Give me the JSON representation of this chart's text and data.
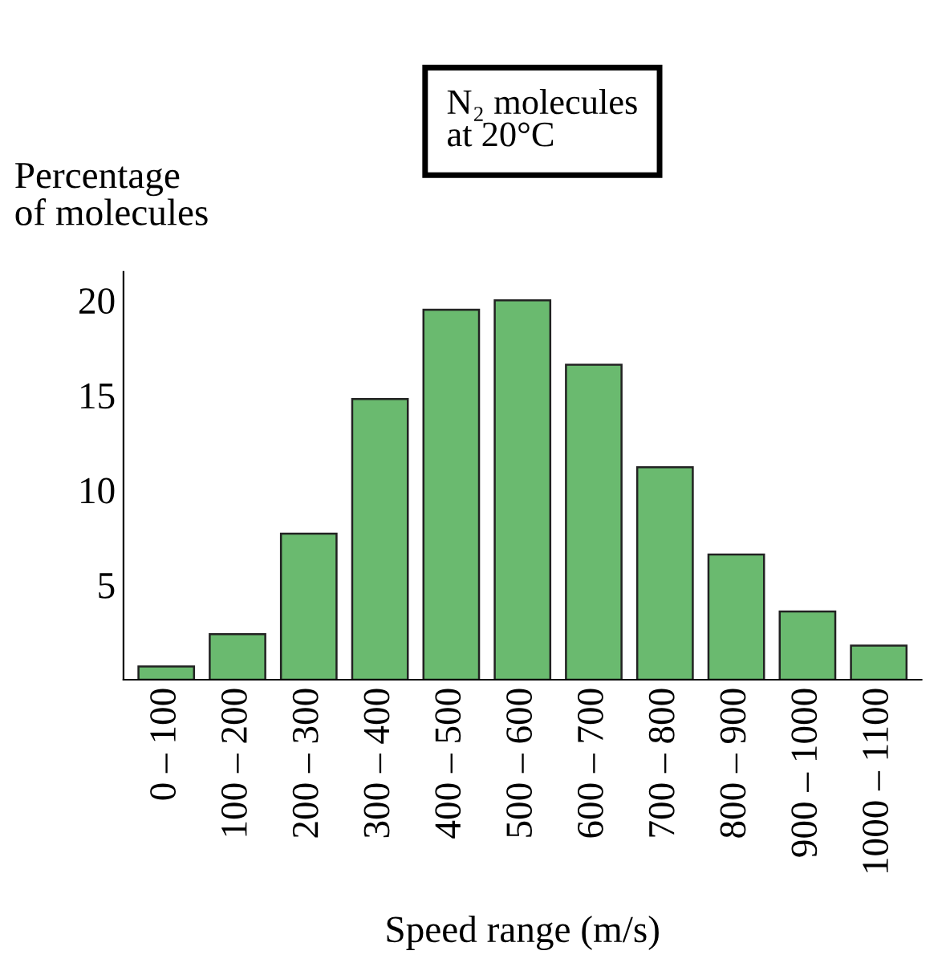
{
  "chart_data": {
    "type": "bar",
    "title": "N₂ molecules\nat 20°C",
    "xlabel": "Speed range (m/s)",
    "ylabel": "Percentage\nof molecules",
    "categories": [
      "0 – 100",
      "100 – 200",
      "200 – 300",
      "300 – 400",
      "400 – 500",
      "500 – 600",
      "600 – 700",
      "700 – 800",
      "800 – 900",
      "900 – 1000",
      "1000 – 1100"
    ],
    "values": [
      0.7,
      2.4,
      7.7,
      14.8,
      19.5,
      20.0,
      16.6,
      11.2,
      6.6,
      3.6,
      1.8
    ],
    "color": "#6aba6f",
    "ylim": [
      0,
      21.5
    ],
    "yticks": [
      5,
      10,
      15,
      20
    ],
    "grid": false,
    "legend": false
  }
}
